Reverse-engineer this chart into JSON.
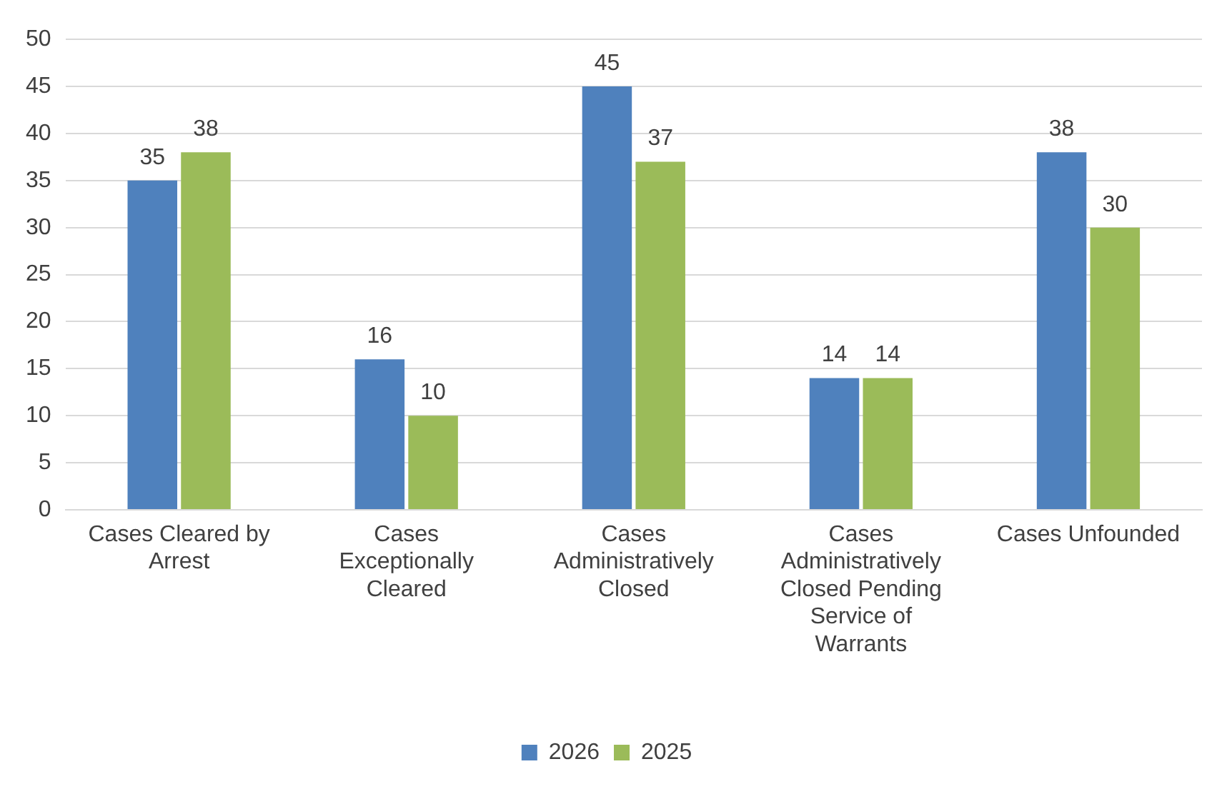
{
  "chart_data": {
    "type": "bar",
    "categories": [
      "Cases Cleared by Arrest",
      "Cases Exceptionally Cleared",
      "Cases Administratively Closed",
      "Cases Administratively Closed Pending Service of Warrants",
      "Cases Unfounded"
    ],
    "series": [
      {
        "name": "2026",
        "color": "#4f81bd",
        "values": [
          35,
          16,
          45,
          14,
          38
        ]
      },
      {
        "name": "2025",
        "color": "#9bbb59",
        "values": [
          38,
          10,
          37,
          14,
          30
        ]
      }
    ],
    "ylim": [
      0,
      50
    ],
    "yticks": [
      0,
      5,
      10,
      15,
      20,
      25,
      30,
      35,
      40,
      45,
      50
    ],
    "grid": "y",
    "legend": "bottom",
    "data_labels": true
  }
}
